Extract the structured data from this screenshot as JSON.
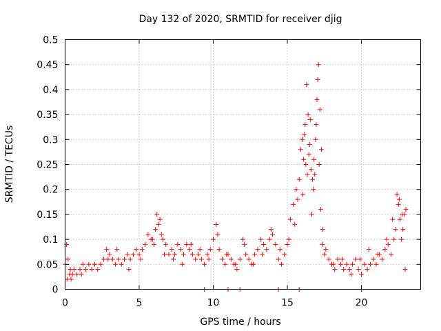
{
  "colors": {
    "series": "#ff0000",
    "grid": "#a0a0a0"
  },
  "chart_data": {
    "type": "scatter",
    "title": "Day 132 of 2020, SRMTID for receiver djig",
    "xlabel": "GPS time / hours",
    "ylabel": "SRMTID / TECUs",
    "xlim": [
      0,
      24
    ],
    "ylim": [
      0,
      0.5
    ],
    "grid": true,
    "marker": "+",
    "xticks": [
      0,
      5,
      10,
      15,
      20
    ],
    "xtick_labels": [
      "0",
      "5",
      "10",
      "15",
      "20"
    ],
    "yticks": [
      0,
      0.05,
      0.1,
      0.15,
      0.2,
      0.25,
      0.3,
      0.35,
      0.4,
      0.45,
      0.5
    ],
    "ytick_labels": [
      "0",
      "0.05",
      "0.1",
      "0.15",
      "0.2",
      "0.25",
      "0.3",
      "0.35",
      "0.4",
      "0.45",
      "0.5"
    ],
    "series": [
      {
        "name": "SRMTID",
        "x": [
          0.0,
          0.1,
          0.2,
          0.3,
          0.4,
          0.5,
          0.6,
          0.8,
          1.0,
          1.2,
          1.4,
          1.6,
          1.8,
          2.0,
          2.2,
          2.4,
          2.6,
          2.8,
          3.0,
          3.2,
          3.4,
          3.6,
          3.8,
          4.0,
          4.2,
          4.4,
          4.6,
          4.8,
          5.0,
          5.2,
          5.4,
          5.6,
          5.8,
          6.0,
          6.1,
          6.2,
          6.3,
          6.4,
          6.5,
          6.6,
          6.8,
          7.0,
          7.2,
          7.4,
          7.6,
          7.8,
          8.0,
          8.2,
          8.4,
          8.6,
          8.8,
          9.0,
          9.2,
          9.4,
          9.6,
          9.8,
          10.0,
          10.2,
          10.4,
          10.6,
          10.8,
          11.0,
          11.2,
          11.4,
          11.6,
          11.8,
          12.0,
          12.2,
          12.4,
          12.6,
          12.8,
          13.0,
          13.2,
          13.4,
          13.6,
          13.8,
          14.0,
          14.2,
          14.4,
          14.6,
          14.8,
          15.0,
          15.2,
          15.4,
          15.6,
          15.7,
          15.8,
          15.9,
          16.0,
          16.1,
          16.2,
          16.3,
          16.4,
          16.5,
          16.6,
          16.7,
          16.8,
          16.9,
          17.0,
          17.1,
          17.2,
          17.3,
          17.4,
          17.6,
          17.8,
          18.0,
          18.2,
          18.4,
          18.6,
          18.8,
          19.0,
          19.2,
          19.4,
          19.6,
          19.8,
          20.0,
          20.2,
          20.4,
          20.6,
          20.8,
          21.0,
          21.2,
          21.4,
          21.6,
          21.8,
          22.0,
          22.2,
          22.3,
          22.4,
          22.5,
          22.6,
          22.7,
          22.8,
          22.9,
          23.0,
          1.1,
          2.9,
          3.5,
          4.3,
          5.1,
          5.9,
          6.7,
          7.3,
          7.9,
          8.5,
          9.1,
          9.7,
          10.3,
          10.9,
          11.5,
          12.1,
          12.7,
          13.3,
          13.9,
          14.5,
          15.1,
          15.5,
          16.05,
          16.15,
          16.25,
          16.35,
          16.45,
          16.55,
          16.65,
          16.75,
          16.85,
          16.95,
          17.05,
          17.15,
          17.25,
          17.35,
          17.5,
          18.1,
          18.7,
          19.3,
          19.9,
          20.5,
          21.1,
          21.7,
          22.1,
          22.55,
          22.75,
          22.95,
          0.15,
          0.35,
          9.4,
          11.0,
          11.8,
          14.4,
          15.8,
          20.0
        ],
        "y": [
          0.05,
          0.09,
          0.06,
          0.03,
          0.02,
          0.03,
          0.04,
          0.03,
          0.04,
          0.05,
          0.04,
          0.05,
          0.04,
          0.05,
          0.04,
          0.05,
          0.06,
          0.08,
          0.07,
          0.06,
          0.05,
          0.06,
          0.05,
          0.06,
          0.07,
          0.06,
          0.07,
          0.08,
          0.07,
          0.08,
          0.09,
          0.11,
          0.1,
          0.09,
          0.12,
          0.15,
          0.13,
          0.14,
          0.11,
          0.1,
          0.09,
          0.07,
          0.08,
          0.07,
          0.09,
          0.08,
          0.07,
          0.09,
          0.08,
          0.07,
          0.06,
          0.07,
          0.06,
          0.05,
          0.07,
          0.08,
          0.1,
          0.13,
          0.08,
          0.06,
          0.05,
          0.07,
          0.06,
          0.05,
          0.04,
          0.06,
          0.1,
          0.07,
          0.06,
          0.05,
          0.07,
          0.08,
          0.1,
          0.09,
          0.08,
          0.1,
          0.11,
          0.09,
          0.06,
          0.05,
          0.07,
          0.09,
          0.14,
          0.17,
          0.2,
          0.18,
          0.22,
          0.28,
          0.3,
          0.26,
          0.33,
          0.41,
          0.35,
          0.29,
          0.24,
          0.22,
          0.26,
          0.3,
          0.38,
          0.45,
          0.36,
          0.28,
          0.12,
          0.08,
          0.06,
          0.05,
          0.04,
          0.06,
          0.05,
          0.04,
          0.05,
          0.04,
          0.05,
          0.06,
          0.04,
          0.03,
          0.05,
          0.04,
          0.05,
          0.06,
          0.05,
          0.07,
          0.06,
          0.08,
          0.09,
          0.07,
          0.1,
          0.12,
          0.19,
          0.17,
          0.14,
          0.1,
          0.12,
          0.15,
          0.16,
          0.03,
          0.06,
          0.08,
          0.04,
          0.06,
          0.1,
          0.07,
          0.06,
          0.05,
          0.09,
          0.08,
          0.06,
          0.11,
          0.07,
          0.05,
          0.09,
          0.05,
          0.07,
          0.12,
          0.08,
          0.1,
          0.13,
          0.19,
          0.31,
          0.25,
          0.23,
          0.27,
          0.34,
          0.15,
          0.2,
          0.23,
          0.33,
          0.42,
          0.25,
          0.16,
          0.09,
          0.07,
          0.05,
          0.06,
          0.03,
          0.06,
          0.08,
          0.07,
          0.1,
          0.14,
          0.18,
          0.15,
          0.04,
          0.02,
          0.04,
          0.0,
          0.0,
          0.0,
          0.0,
          0.0,
          0.0
        ]
      }
    ]
  }
}
